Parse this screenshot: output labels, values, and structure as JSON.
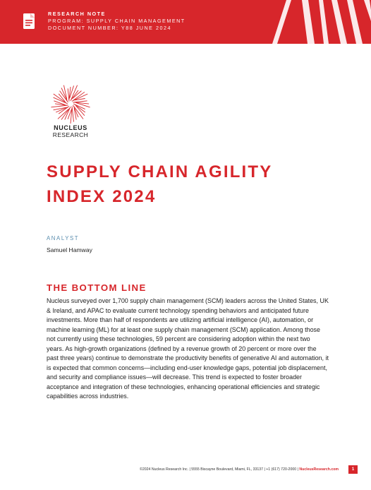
{
  "header": {
    "label": "RESEARCH NOTE",
    "program": "PROGRAM: SUPPLY CHAIN MANAGEMENT",
    "document_number": "DOCUMENT NUMBER: Y88 JUNE 2024"
  },
  "logo": {
    "name": "NUCLEUS",
    "sub": "RESEARCH"
  },
  "title": {
    "line1": "SUPPLY CHAIN AGILITY",
    "line2": "INDEX 2024"
  },
  "analyst": {
    "label": "ANALYST",
    "name": "Samuel Hamway"
  },
  "section": {
    "heading": "THE BOTTOM LINE",
    "body": "Nucleus surveyed over 1,700 supply chain management (SCM) leaders across the United States, UK & Ireland, and APAC to evaluate current technology spending behaviors and anticipated future investments. More than half of respondents are utilizing artificial intelligence (AI), automation, or machine learning (ML) for at least one supply chain management (SCM) application. Among those not currently using these technologies, 59 percent are considering adoption within the next two years. As high-growth organizations (defined by a revenue growth of 20 percent or more over the past three years) continue to demonstrate the productivity benefits of generative AI and automation, it is expected that common concerns—including end-user knowledge gaps, potential job displacement, and security and compliance issues—will decrease. This trend is expected to foster broader acceptance and integration of these technologies, enhancing operational efficiencies and strategic capabilities across industries."
  },
  "footer": {
    "text": "©2024 Nucleus Research Inc. | 5555 Biscayne Boulevard, Miami, FL, 33137 | +1 (617) 720-2000 | ",
    "link": "NucleusResearch.com",
    "page": "1"
  },
  "colors": {
    "brand_red": "#d7262b",
    "analyst_blue": "#5a8dae"
  },
  "icons": [
    "document-icon",
    "nucleus-burst-logo-icon"
  ]
}
